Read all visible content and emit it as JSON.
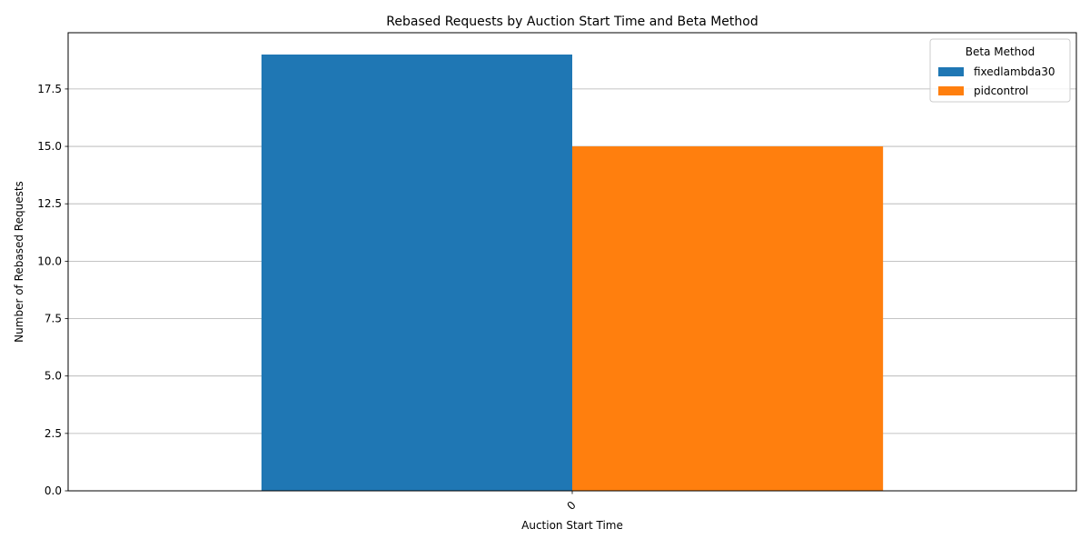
{
  "chart_data": {
    "type": "bar",
    "title": "Rebased Requests by Auction Start Time and Beta Method",
    "xlabel": "Auction Start Time",
    "ylabel": "Number of Rebased Requests",
    "categories": [
      "0"
    ],
    "series": [
      {
        "name": "fixedlambda30",
        "values": [
          19
        ],
        "color": "#1f77b4"
      },
      {
        "name": "pidcontrol",
        "values": [
          15
        ],
        "color": "#ff7f0e"
      }
    ],
    "ylim": [
      0,
      19.95
    ],
    "yticks": [
      0.0,
      2.5,
      5.0,
      7.5,
      10.0,
      12.5,
      15.0,
      17.5
    ],
    "ytick_labels": [
      "0.0",
      "2.5",
      "5.0",
      "7.5",
      "10.0",
      "12.5",
      "15.0",
      "17.5"
    ],
    "grid": "horizontal",
    "legend": {
      "title": "Beta Method",
      "placement": "top-right"
    }
  }
}
